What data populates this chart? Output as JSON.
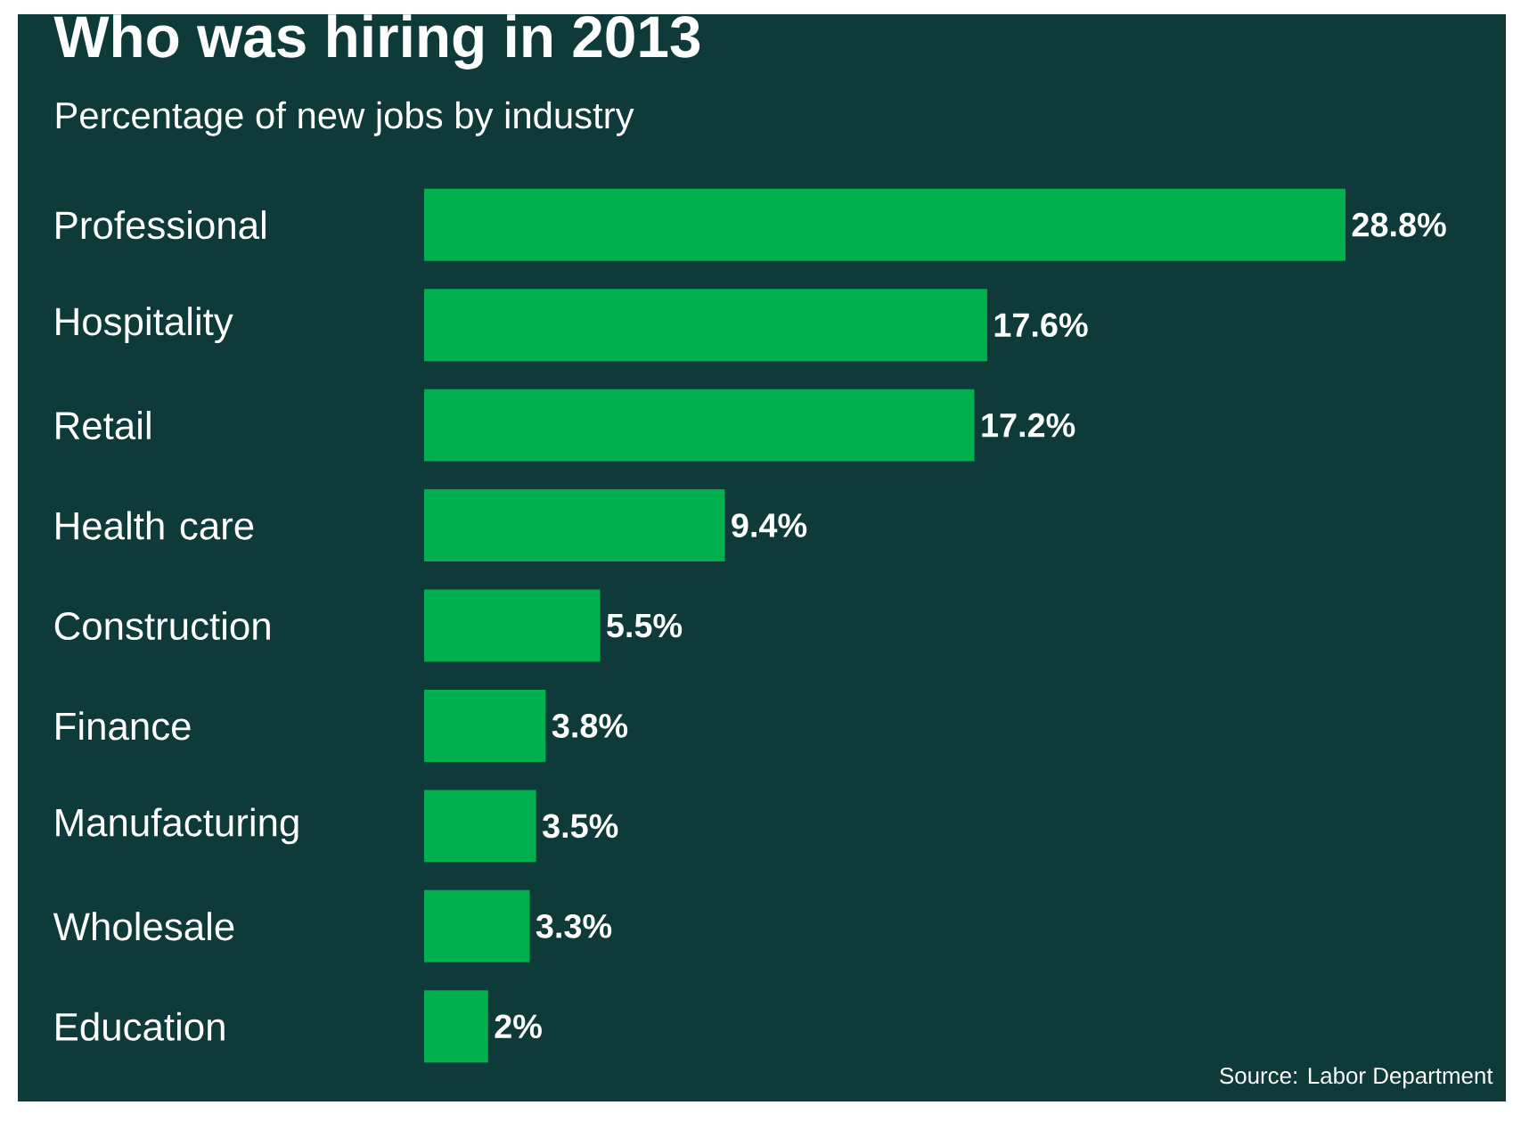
{
  "chart_data": {
    "type": "bar",
    "orientation": "horizontal",
    "title": "Who was hiring in 2013",
    "subtitle": "Percentage of new jobs by industry",
    "categories": [
      "Professional",
      "Hospitality",
      "Retail",
      "Health care",
      "Construction",
      "Finance",
      "Manufacturing",
      "Wholesale",
      "Education"
    ],
    "values": [
      28.8,
      17.6,
      17.2,
      9.4,
      5.5,
      3.8,
      3.5,
      3.3,
      2
    ],
    "value_labels": [
      "28.8%",
      "17.6%",
      "17.2%",
      "9.4%",
      "5.5%",
      "3.8%",
      "3.5%",
      "3.3%",
      "2%"
    ],
    "color": "#00b04f",
    "annotations": [
      "Source: Labor Department"
    ]
  }
}
